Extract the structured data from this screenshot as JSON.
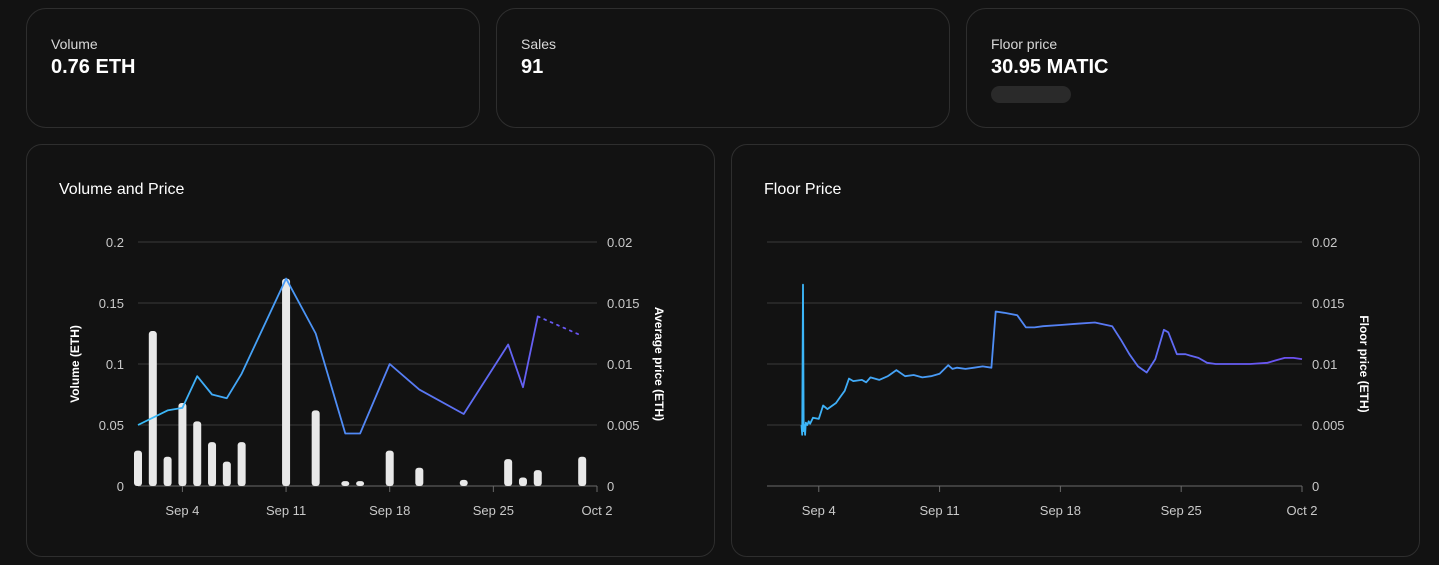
{
  "stats": [
    {
      "label": "Volume",
      "value": "0.76 ETH"
    },
    {
      "label": "Sales",
      "value": "91"
    },
    {
      "label": "Floor price",
      "value": "30.95 MATIC"
    }
  ],
  "chart_data": [
    {
      "type": "bar",
      "title": "Volume and Price",
      "xlabel": "",
      "ylabel": "Volume (ETH)",
      "y2label": "Average price (ETH)",
      "x_ticks": [
        "Sep 4",
        "Sep 11",
        "Sep 18",
        "Sep 25",
        "Oct 2"
      ],
      "x_range": [
        "2023-09-01",
        "2023-10-02"
      ],
      "ylim": [
        0,
        0.2
      ],
      "y_ticks": [
        "0",
        "0.05",
        "0.1",
        "0.15",
        "0.2"
      ],
      "y2lim": [
        0,
        0.02
      ],
      "y2_ticks": [
        "0",
        "0.005",
        "0.01",
        "0.015",
        "0.02"
      ],
      "grid": true,
      "colors": {
        "bars": "#e8e8e8",
        "line_start": "#38bdf8",
        "line_end": "#6d4ff2",
        "grid": "#3a3a3a"
      },
      "series": [
        {
          "type": "bar",
          "axis": "left",
          "x": [
            "2023-09-01",
            "2023-09-02",
            "2023-09-03",
            "2023-09-04",
            "2023-09-05",
            "2023-09-06",
            "2023-09-07",
            "2023-09-08",
            "2023-09-09",
            "2023-09-11",
            "2023-09-13",
            "2023-09-15",
            "2023-09-16",
            "2023-09-18",
            "2023-09-20",
            "2023-09-23",
            "2023-09-26",
            "2023-09-27",
            "2023-09-28",
            "2023-10-01"
          ],
          "values": [
            0.029,
            0.127,
            0.024,
            0.068,
            0.053,
            0.036,
            0.02,
            0.036,
            0.0,
            0.17,
            0.062,
            0.004,
            0.004,
            0.029,
            0.015,
            0.005,
            0.022,
            0.007,
            0.013,
            0.024
          ]
        },
        {
          "type": "line",
          "axis": "right",
          "x": [
            "2023-09-01",
            "2023-09-03",
            "2023-09-04",
            "2023-09-05",
            "2023-09-06",
            "2023-09-07",
            "2023-09-08",
            "2023-09-11",
            "2023-09-13",
            "2023-09-15",
            "2023-09-16",
            "2023-09-18",
            "2023-09-20",
            "2023-09-23",
            "2023-09-26",
            "2023-09-27",
            "2023-09-28"
          ],
          "values": [
            0.005,
            0.0062,
            0.0064,
            0.009,
            0.0075,
            0.0072,
            0.0092,
            0.017,
            0.0125,
            0.0043,
            0.0043,
            0.01,
            0.0079,
            0.0059,
            0.0116,
            0.0081,
            0.0139
          ]
        },
        {
          "type": "line",
          "style": "dotted",
          "axis": "right",
          "x": [
            "2023-09-28",
            "2023-10-01"
          ],
          "values": [
            0.0139,
            0.0123
          ]
        }
      ]
    },
    {
      "type": "line",
      "title": "Floor Price",
      "xlabel": "",
      "ylabel": "",
      "y2label": "Floor price (ETH)",
      "x_ticks": [
        "Sep 4",
        "Sep 18",
        "Sep 11",
        "Sep 25",
        "Oct 2"
      ],
      "x_range": [
        "2023-09-01",
        "2023-10-02"
      ],
      "y2lim": [
        0,
        0.02
      ],
      "y2_ticks": [
        "0",
        "0.005",
        "0.01",
        "0.015",
        "0.02"
      ],
      "grid": true,
      "colors": {
        "line_start": "#38bdf8",
        "line_end": "#6d4ff2",
        "grid": "#3a3a3a"
      },
      "series": [
        {
          "x": [
            "2023-09-03T00:00",
            "2023-09-03T01:00",
            "2023-09-03T02:00",
            "2023-09-03T03:00",
            "2023-09-03T04:00",
            "2023-09-03T05:00",
            "2023-09-03T06:00",
            "2023-09-03T08:00",
            "2023-09-03T10:00",
            "2023-09-03T12:00",
            "2023-09-03T16:00",
            "2023-09-04T00:00",
            "2023-09-04T06:00",
            "2023-09-04T12:00",
            "2023-09-05T00:00",
            "2023-09-05T06:00",
            "2023-09-05T12:00",
            "2023-09-05T18:00",
            "2023-09-06T00:00",
            "2023-09-06T12:00",
            "2023-09-06T18:00",
            "2023-09-07T00:00",
            "2023-09-07T12:00",
            "2023-09-08T00:00",
            "2023-09-08T12:00",
            "2023-09-09T00:00",
            "2023-09-09T12:00",
            "2023-09-10T00:00",
            "2023-09-10T12:00",
            "2023-09-11T00:00",
            "2023-09-11T12:00",
            "2023-09-11T18:00",
            "2023-09-12T00:00",
            "2023-09-12T12:00",
            "2023-09-13T00:00",
            "2023-09-13T12:00",
            "2023-09-14T00:00",
            "2023-09-14T06:00",
            "2023-09-14T18:00",
            "2023-09-15T12:00",
            "2023-09-16T00:00",
            "2023-09-16T12:00",
            "2023-09-17T00:00",
            "2023-09-18T00:00",
            "2023-09-19T00:00",
            "2023-09-20T00:00",
            "2023-09-21T00:00",
            "2023-09-21T12:00",
            "2023-09-22T00:00",
            "2023-09-22T12:00",
            "2023-09-23T00:00",
            "2023-09-23T12:00",
            "2023-09-24T00:00",
            "2023-09-24T06:00",
            "2023-09-24T18:00",
            "2023-09-25T00:00",
            "2023-09-25T06:00",
            "2023-09-25T12:00",
            "2023-09-26T00:00",
            "2023-09-26T12:00",
            "2023-09-27T00:00",
            "2023-09-27T12:00",
            "2023-09-28T00:00",
            "2023-09-29T00:00",
            "2023-09-30T00:00",
            "2023-09-30T12:00",
            "2023-10-01T00:00",
            "2023-10-01T12:00",
            "2023-10-02T00:00"
          ],
          "values": [
            0.005,
            0.0042,
            0.0165,
            0.0045,
            0.005,
            0.0042,
            0.0052,
            0.005,
            0.0053,
            0.0051,
            0.0056,
            0.0055,
            0.0066,
            0.0063,
            0.0068,
            0.0073,
            0.0078,
            0.0088,
            0.0086,
            0.0087,
            0.0085,
            0.0089,
            0.0087,
            0.009,
            0.0095,
            0.009,
            0.0091,
            0.0089,
            0.009,
            0.0092,
            0.0099,
            0.0096,
            0.0097,
            0.0096,
            0.0097,
            0.0098,
            0.0097,
            0.0143,
            0.0142,
            0.014,
            0.013,
            0.013,
            0.0131,
            0.0132,
            0.0133,
            0.0134,
            0.0131,
            0.012,
            0.0108,
            0.0098,
            0.0093,
            0.0104,
            0.0128,
            0.0126,
            0.0108,
            0.0108,
            0.0108,
            0.0107,
            0.0105,
            0.0101,
            0.01,
            0.01,
            0.01,
            0.01,
            0.0101,
            0.0103,
            0.0105,
            0.0105,
            0.0104
          ]
        }
      ]
    }
  ]
}
